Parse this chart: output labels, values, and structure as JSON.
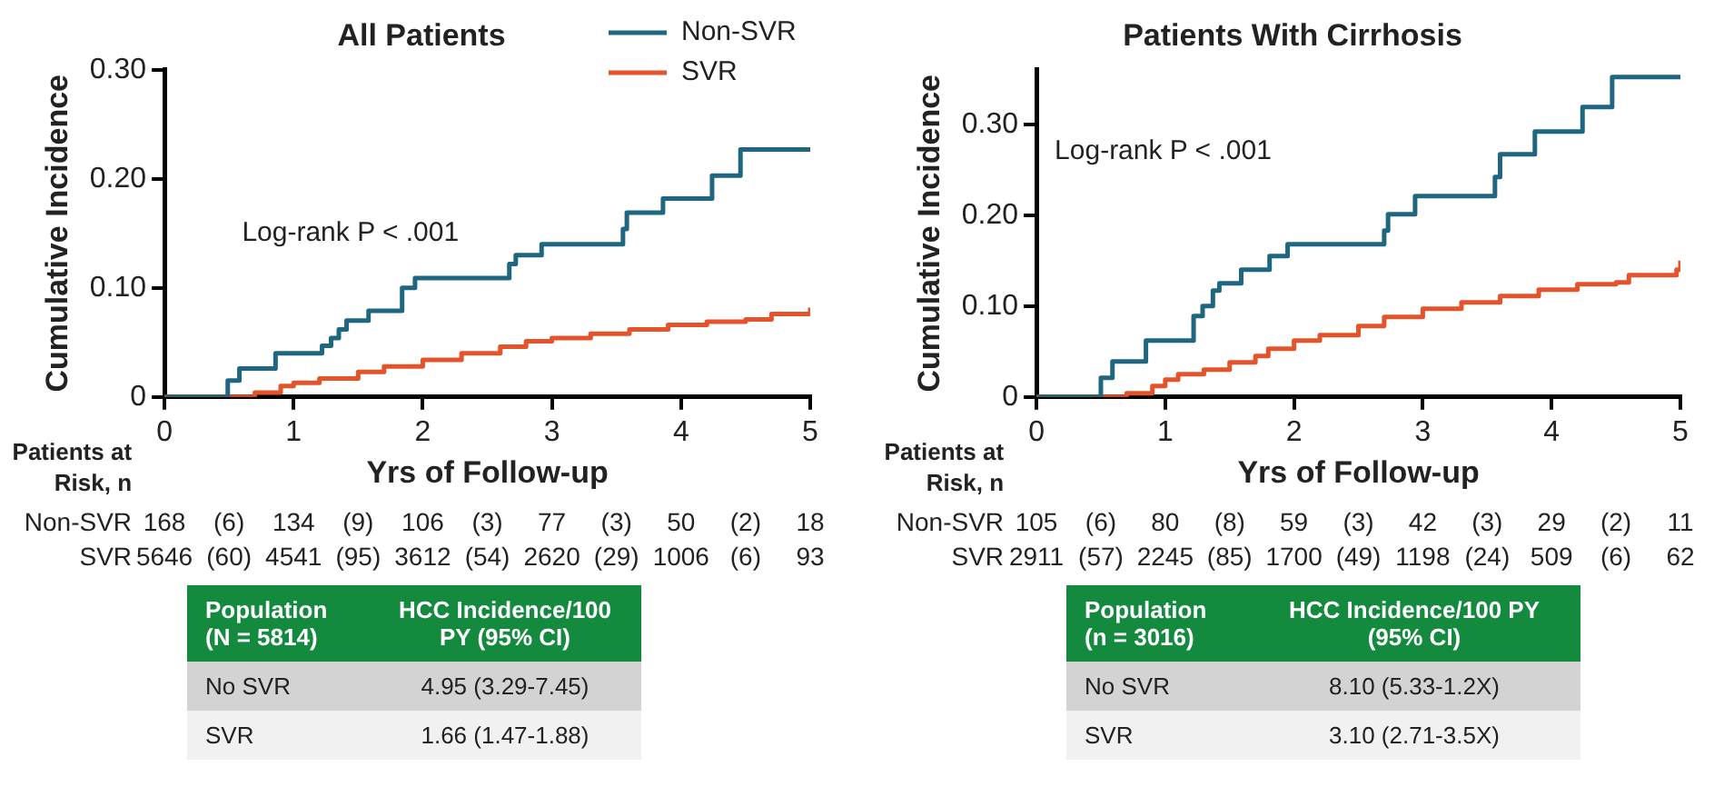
{
  "chart_data": [
    {
      "type": "step",
      "title": "All Patients",
      "xlabel": "Yrs of Follow-up",
      "ylabel": "Cumulative Incidence",
      "legend": "top right",
      "xlim": [
        0,
        5
      ],
      "xticks": [
        0,
        1,
        2,
        3,
        4,
        5
      ],
      "ylim": [
        0,
        0.3
      ],
      "yticks": [
        0,
        {
          "value": 0.1,
          "label": "0.10"
        },
        {
          "value": 0.2,
          "label": "0.20"
        },
        {
          "value": 0.3,
          "label": "0.30"
        }
      ],
      "series": [
        {
          "name": "Non-SVR",
          "color": "#1f6680",
          "x": [
            0,
            0.49,
            0.58,
            0.86,
            1.22,
            1.29,
            1.35,
            1.41,
            1.58,
            1.84,
            1.94,
            2.67,
            2.72,
            2.92,
            3.55,
            3.58,
            3.86,
            4.24,
            4.46,
            5.0
          ],
          "values": [
            0,
            0.015,
            0.026,
            0.04,
            0.047,
            0.054,
            0.062,
            0.07,
            0.079,
            0.1,
            0.109,
            0.122,
            0.13,
            0.14,
            0.154,
            0.169,
            0.182,
            0.203,
            0.227,
            0.227
          ]
        },
        {
          "name": "SVR",
          "color": "#e5532a",
          "x": [
            0,
            0.5,
            0.7,
            0.9,
            1.0,
            1.2,
            1.5,
            1.7,
            2.0,
            2.3,
            2.6,
            2.8,
            3.0,
            3.3,
            3.6,
            3.9,
            4.2,
            4.5,
            4.7,
            4.98,
            5.0
          ],
          "values": [
            0,
            0,
            0.004,
            0.01,
            0.013,
            0.017,
            0.023,
            0.028,
            0.034,
            0.04,
            0.046,
            0.051,
            0.054,
            0.058,
            0.062,
            0.066,
            0.069,
            0.071,
            0.076,
            0.076,
            0.082
          ]
        }
      ],
      "annotations": [
        "Log-rank P < .001",
        "Patients at Risk, n",
        "Non-SVR 168 (6) 134 (9) 106 (3) 77 (3) 50 (2) 18",
        "SVR 5646 (60) 4541 (95) 3612 (54) 2620 (29) 1006 (6) 93",
        "Population (N = 5814)",
        "HCC Incidence/100 PY (95% CI)",
        "No SVR",
        "4.95 (3.29-7.45)",
        "SVR",
        "1.66 (1.47-1.88)"
      ]
    },
    {
      "type": "step",
      "title": "Patients With Cirrhosis",
      "xlabel": "Yrs of Follow-up",
      "ylabel": "Cumulative Incidence",
      "xlim": [
        0,
        5
      ],
      "xticks": [
        0,
        1,
        2,
        3,
        4,
        5
      ],
      "ylim": [
        0,
        0.36
      ],
      "yticks": [
        0,
        {
          "value": 0.1,
          "label": "0.10"
        },
        {
          "value": 0.2,
          "label": "0.20"
        },
        {
          "value": 0.3,
          "label": "0.30"
        }
      ],
      "series": [
        {
          "color": "#1f6680",
          "x": [
            0,
            0.5,
            0.59,
            0.85,
            1.22,
            1.29,
            1.37,
            1.42,
            1.59,
            1.81,
            1.95,
            2.7,
            2.73,
            2.94,
            3.56,
            3.6,
            3.87,
            4.24,
            4.47,
            5.0
          ],
          "values": [
            0,
            0.021,
            0.039,
            0.062,
            0.089,
            0.1,
            0.117,
            0.125,
            0.14,
            0.155,
            0.168,
            0.183,
            0.201,
            0.221,
            0.242,
            0.267,
            0.292,
            0.319,
            0.352,
            0.352
          ]
        },
        {
          "color": "#e5532a",
          "x": [
            0,
            0.5,
            0.7,
            0.9,
            1.0,
            1.1,
            1.3,
            1.5,
            1.7,
            1.8,
            2.0,
            2.2,
            2.5,
            2.7,
            3.0,
            3.3,
            3.6,
            3.9,
            4.2,
            4.5,
            4.6,
            4.97,
            5.0
          ],
          "values": [
            0,
            0,
            0.004,
            0.012,
            0.019,
            0.025,
            0.03,
            0.038,
            0.045,
            0.053,
            0.062,
            0.068,
            0.078,
            0.088,
            0.097,
            0.104,
            0.111,
            0.118,
            0.124,
            0.126,
            0.134,
            0.14,
            0.15
          ]
        }
      ],
      "annotations": [
        "Log-rank P < .001",
        "Patients at Risk, n",
        "Non-SVR 105 (6) 80 (8) 59 (3) 42 (3) 29 (2) 11",
        "SVR 2911 (57) 2245 (85) 1700 (49) 1198 (24) 509 (6) 62",
        "Population (n = 3016)",
        "HCC Incidence/100 PY (95% CI)",
        "No SVR",
        "8.10 (5.33-1.2X)",
        "SVR",
        "3.10 (2.71-3.5X)"
      ]
    }
  ]
}
